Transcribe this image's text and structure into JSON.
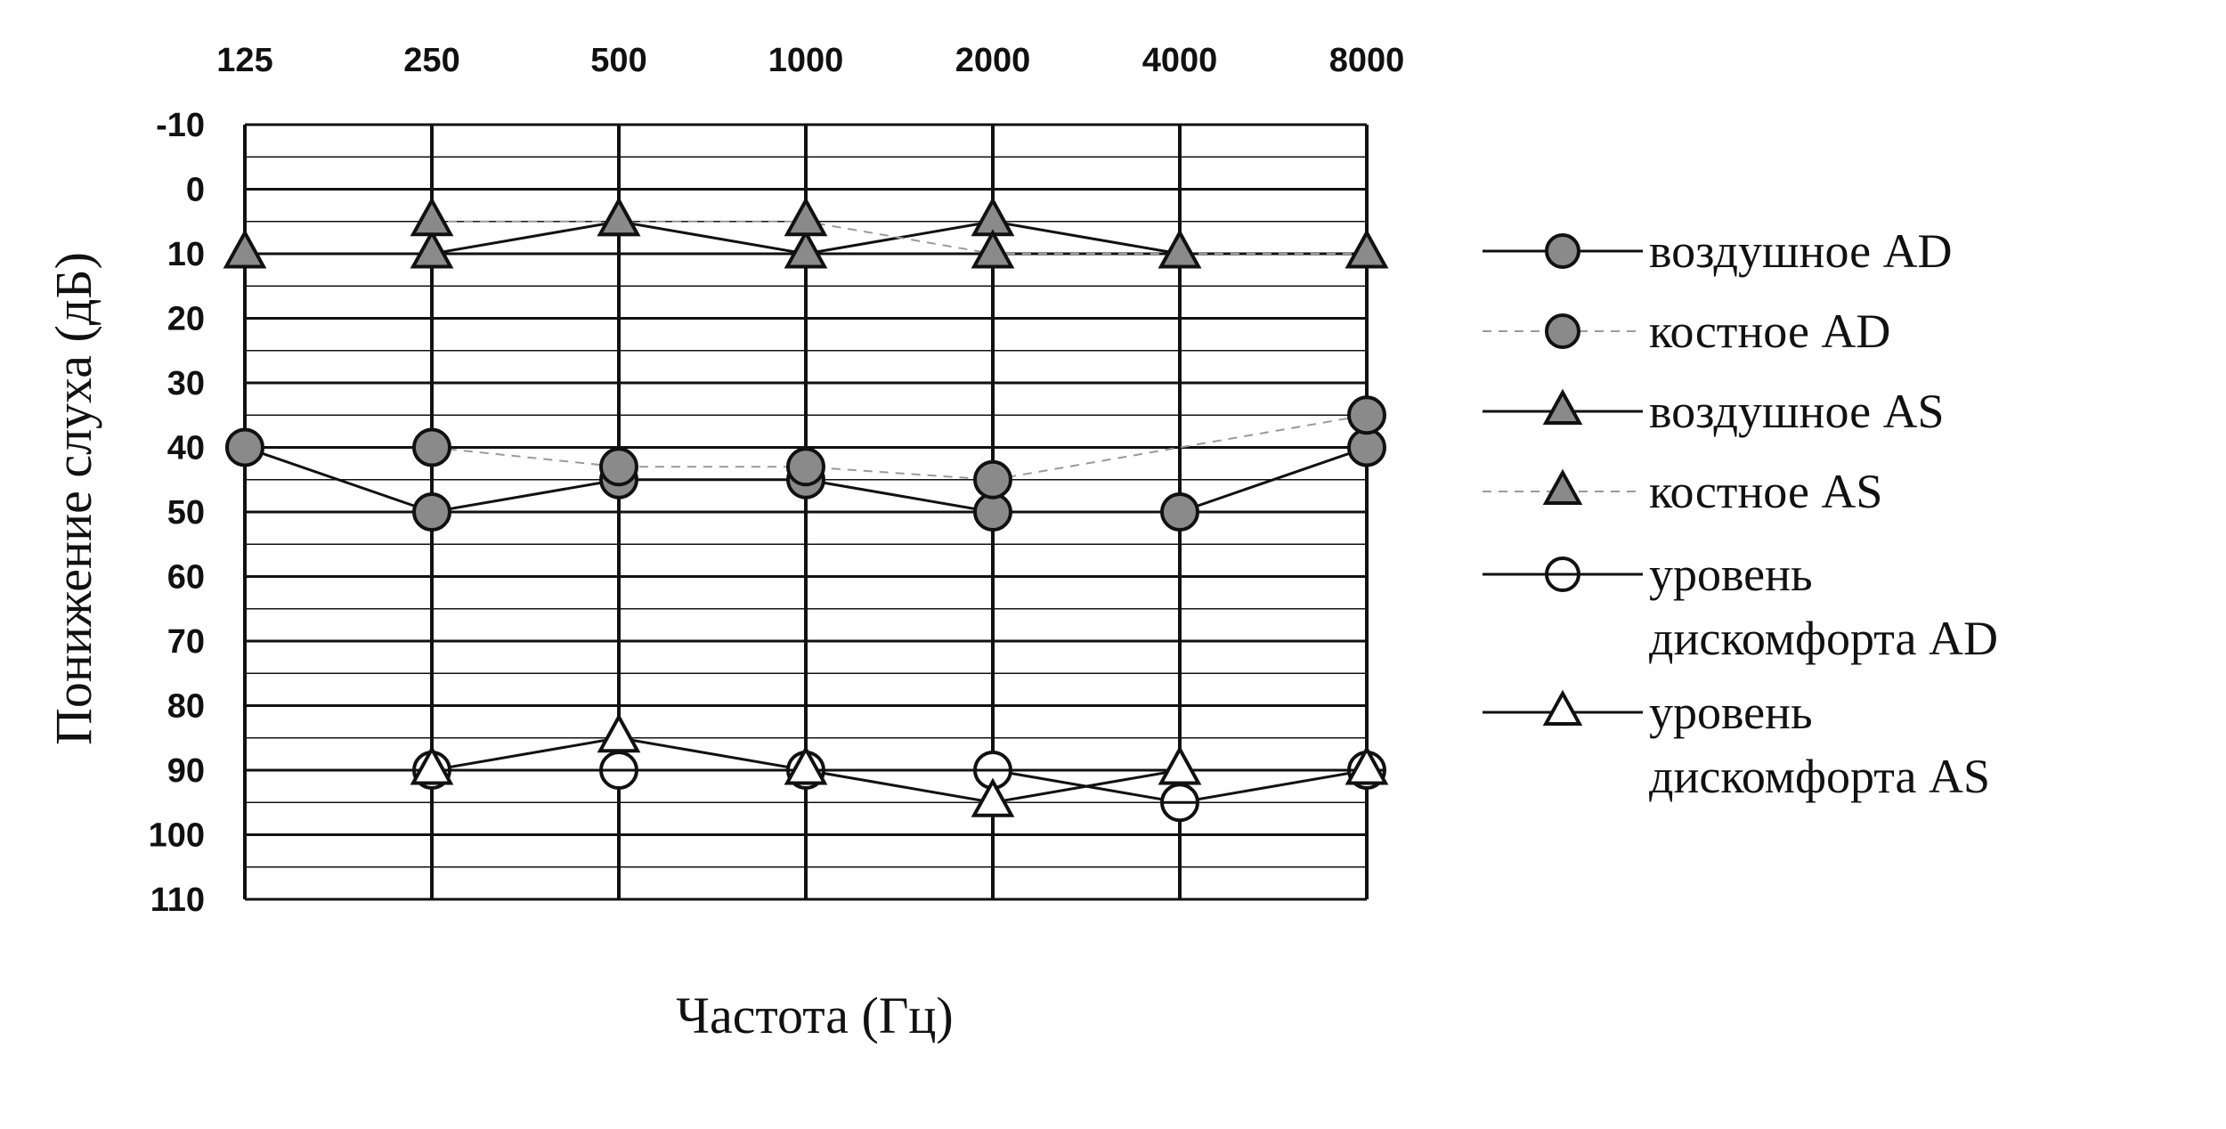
{
  "chart_data": {
    "type": "line",
    "xlabel": "Частота (Гц)",
    "ylabel": "Понижение слуха (дБ)",
    "categories": [
      "125",
      "250",
      "500",
      "1000",
      "2000",
      "4000",
      "8000"
    ],
    "y_ticks": [
      "-10",
      "0",
      "10",
      "20",
      "30",
      "40",
      "50",
      "60",
      "70",
      "80",
      "90",
      "100",
      "110"
    ],
    "ylim": [
      -10,
      110
    ],
    "y_inverted": true,
    "grid": true,
    "legend_position": "right",
    "series": [
      {
        "name": "воздушное AD",
        "marker": "filled-circle",
        "line": "solid",
        "values": [
          40,
          50,
          45,
          45,
          50,
          50,
          40
        ]
      },
      {
        "name": "костное AD",
        "marker": "filled-circle",
        "line": "dashed",
        "values": [
          null,
          40,
          43,
          43,
          45,
          null,
          35
        ]
      },
      {
        "name": "воздушное AS",
        "marker": "filled-triangle",
        "line": "solid",
        "values": [
          10,
          10,
          5,
          10,
          5,
          10,
          10
        ]
      },
      {
        "name": "костное AS",
        "marker": "filled-triangle",
        "line": "dashed",
        "values": [
          null,
          5,
          5,
          5,
          10,
          10,
          10
        ]
      },
      {
        "name": "уровень дискомфорта AD",
        "marker": "open-circle",
        "line": "solid",
        "values": [
          null,
          90,
          90,
          90,
          90,
          95,
          90
        ]
      },
      {
        "name": "уровень дискомфорта AS",
        "marker": "open-triangle",
        "line": "solid",
        "values": [
          null,
          90,
          85,
          90,
          95,
          90,
          90
        ]
      }
    ],
    "legend": [
      {
        "lines": [
          "воздушное AD"
        ]
      },
      {
        "lines": [
          "костное AD"
        ]
      },
      {
        "lines": [
          "воздушное AS"
        ]
      },
      {
        "lines": [
          "костное AS"
        ]
      },
      {
        "lines": [
          "уровень",
          "дискомфорта AD"
        ]
      },
      {
        "lines": [
          "уровень",
          "дискомфорта AS"
        ]
      }
    ],
    "colors": {
      "line": "#111111",
      "dashed": "#9a9a9a",
      "fill": "#8a8a8a",
      "grid": "#111111"
    }
  }
}
